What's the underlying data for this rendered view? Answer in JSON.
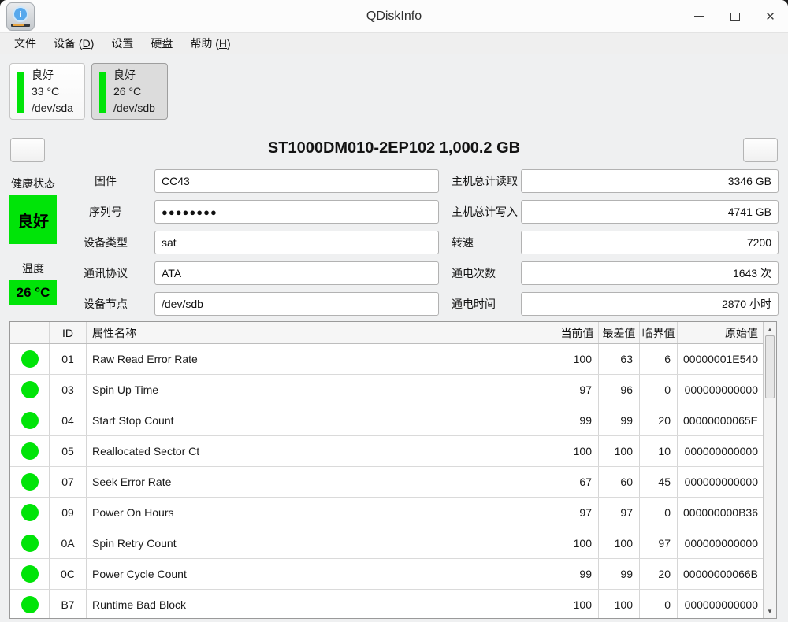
{
  "window": {
    "title": "QDiskInfo"
  },
  "icons": {
    "minimize": "minimize",
    "maximize": "maximize",
    "close": "✕",
    "scroll_up": "▲",
    "scroll_down": "▼",
    "app_icon_letter": "i"
  },
  "colors": {
    "good_green": "#00e408"
  },
  "menu": {
    "items": [
      {
        "text": "文件"
      },
      {
        "pre": "设备 (",
        "key": "D",
        "post": ")"
      },
      {
        "text": "设置"
      },
      {
        "text": "硬盘"
      },
      {
        "pre": "帮助 (",
        "key": "H",
        "post": ")"
      }
    ]
  },
  "drives": [
    {
      "status": "良好",
      "temp": "33 °C",
      "device": "/dev/sda",
      "selected": false
    },
    {
      "status": "良好",
      "temp": "26 °C",
      "device": "/dev/sdb",
      "selected": true
    }
  ],
  "header": {
    "model": "ST1000DM010-2EP102 1,000.2 GB"
  },
  "health": {
    "status_label": "健康状态",
    "status_value": "良好",
    "temp_label": "温度",
    "temp_value": "26 °C"
  },
  "info_left": [
    {
      "label": "固件",
      "value": "CC43"
    },
    {
      "label": "序列号",
      "value": "●●●●●●●●"
    },
    {
      "label": "设备类型",
      "value": "sat"
    },
    {
      "label": "通讯协议",
      "value": "ATA"
    },
    {
      "label": "设备节点",
      "value": "/dev/sdb"
    }
  ],
  "info_right": [
    {
      "label": "主机总计读取",
      "value": "3346 GB"
    },
    {
      "label": "主机总计写入",
      "value": "4741 GB"
    },
    {
      "label": "转速",
      "value": "7200"
    },
    {
      "label": "通电次数",
      "value": "1643 次"
    },
    {
      "label": "通电时间",
      "value": "2870 小时"
    }
  ],
  "table": {
    "headers": {
      "status": "",
      "id": "ID",
      "name": "属性名称",
      "current": "当前值",
      "worst": "最差值",
      "threshold": "临界值",
      "raw": "原始值"
    },
    "rows": [
      {
        "id": "01",
        "name": "Raw Read Error Rate",
        "current": "100",
        "worst": "63",
        "threshold": "6",
        "raw": "00000001E540"
      },
      {
        "id": "03",
        "name": "Spin Up Time",
        "current": "97",
        "worst": "96",
        "threshold": "0",
        "raw": "000000000000"
      },
      {
        "id": "04",
        "name": "Start Stop Count",
        "current": "99",
        "worst": "99",
        "threshold": "20",
        "raw": "00000000065E"
      },
      {
        "id": "05",
        "name": "Reallocated Sector Ct",
        "current": "100",
        "worst": "100",
        "threshold": "10",
        "raw": "000000000000"
      },
      {
        "id": "07",
        "name": "Seek Error Rate",
        "current": "67",
        "worst": "60",
        "threshold": "45",
        "raw": "000000000000"
      },
      {
        "id": "09",
        "name": "Power On Hours",
        "current": "97",
        "worst": "97",
        "threshold": "0",
        "raw": "000000000B36"
      },
      {
        "id": "0A",
        "name": "Spin Retry Count",
        "current": "100",
        "worst": "100",
        "threshold": "97",
        "raw": "000000000000"
      },
      {
        "id": "0C",
        "name": "Power Cycle Count",
        "current": "99",
        "worst": "99",
        "threshold": "20",
        "raw": "00000000066B"
      },
      {
        "id": "B7",
        "name": "Runtime Bad Block",
        "current": "100",
        "worst": "100",
        "threshold": "0",
        "raw": "000000000000"
      }
    ]
  }
}
